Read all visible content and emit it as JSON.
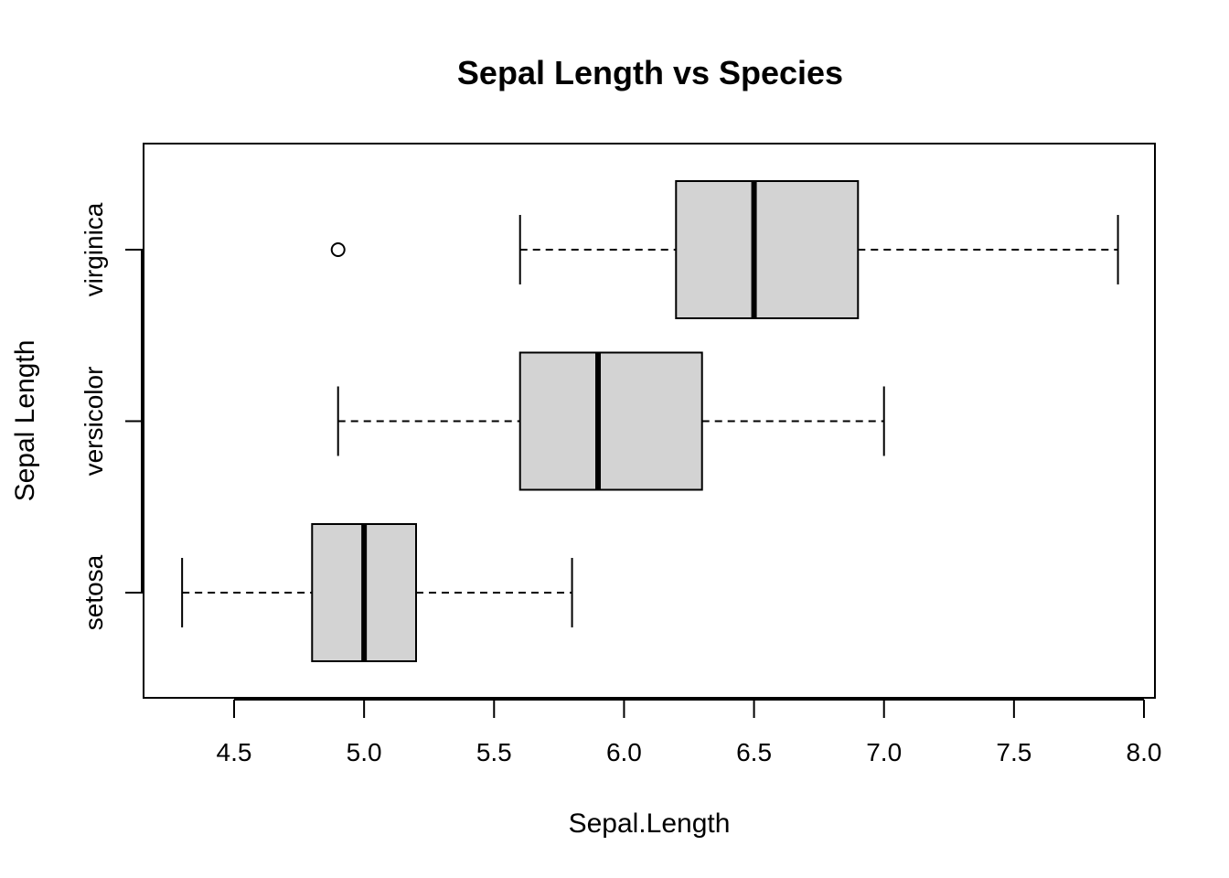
{
  "chart_data": {
    "type": "boxplot",
    "orientation": "horizontal",
    "title": "Sepal Length vs Species",
    "xlabel": "Sepal.Length",
    "ylabel": "Sepal Length",
    "xlim": [
      4.2,
      8.0
    ],
    "xticks": [
      4.5,
      5.0,
      5.5,
      6.0,
      6.5,
      7.0,
      7.5,
      8.0
    ],
    "xtick_labels": [
      "4.5",
      "5.0",
      "5.5",
      "6.0",
      "6.5",
      "7.0",
      "7.5",
      "8.0"
    ],
    "categories": [
      "setosa",
      "versicolor",
      "virginica"
    ],
    "boxes": [
      {
        "category": "setosa",
        "min": 4.3,
        "q1": 4.8,
        "median": 5.0,
        "q3": 5.2,
        "max": 5.8,
        "outliers": []
      },
      {
        "category": "versicolor",
        "min": 4.9,
        "q1": 5.6,
        "median": 5.9,
        "q3": 6.3,
        "max": 7.0,
        "outliers": []
      },
      {
        "category": "virginica",
        "min": 5.6,
        "q1": 6.2,
        "median": 6.5,
        "q3": 6.9,
        "max": 7.9,
        "outliers": [
          4.9
        ]
      }
    ],
    "box_fill": "#d3d3d3",
    "line_color": "#000000",
    "grid": false,
    "legend": "none"
  }
}
